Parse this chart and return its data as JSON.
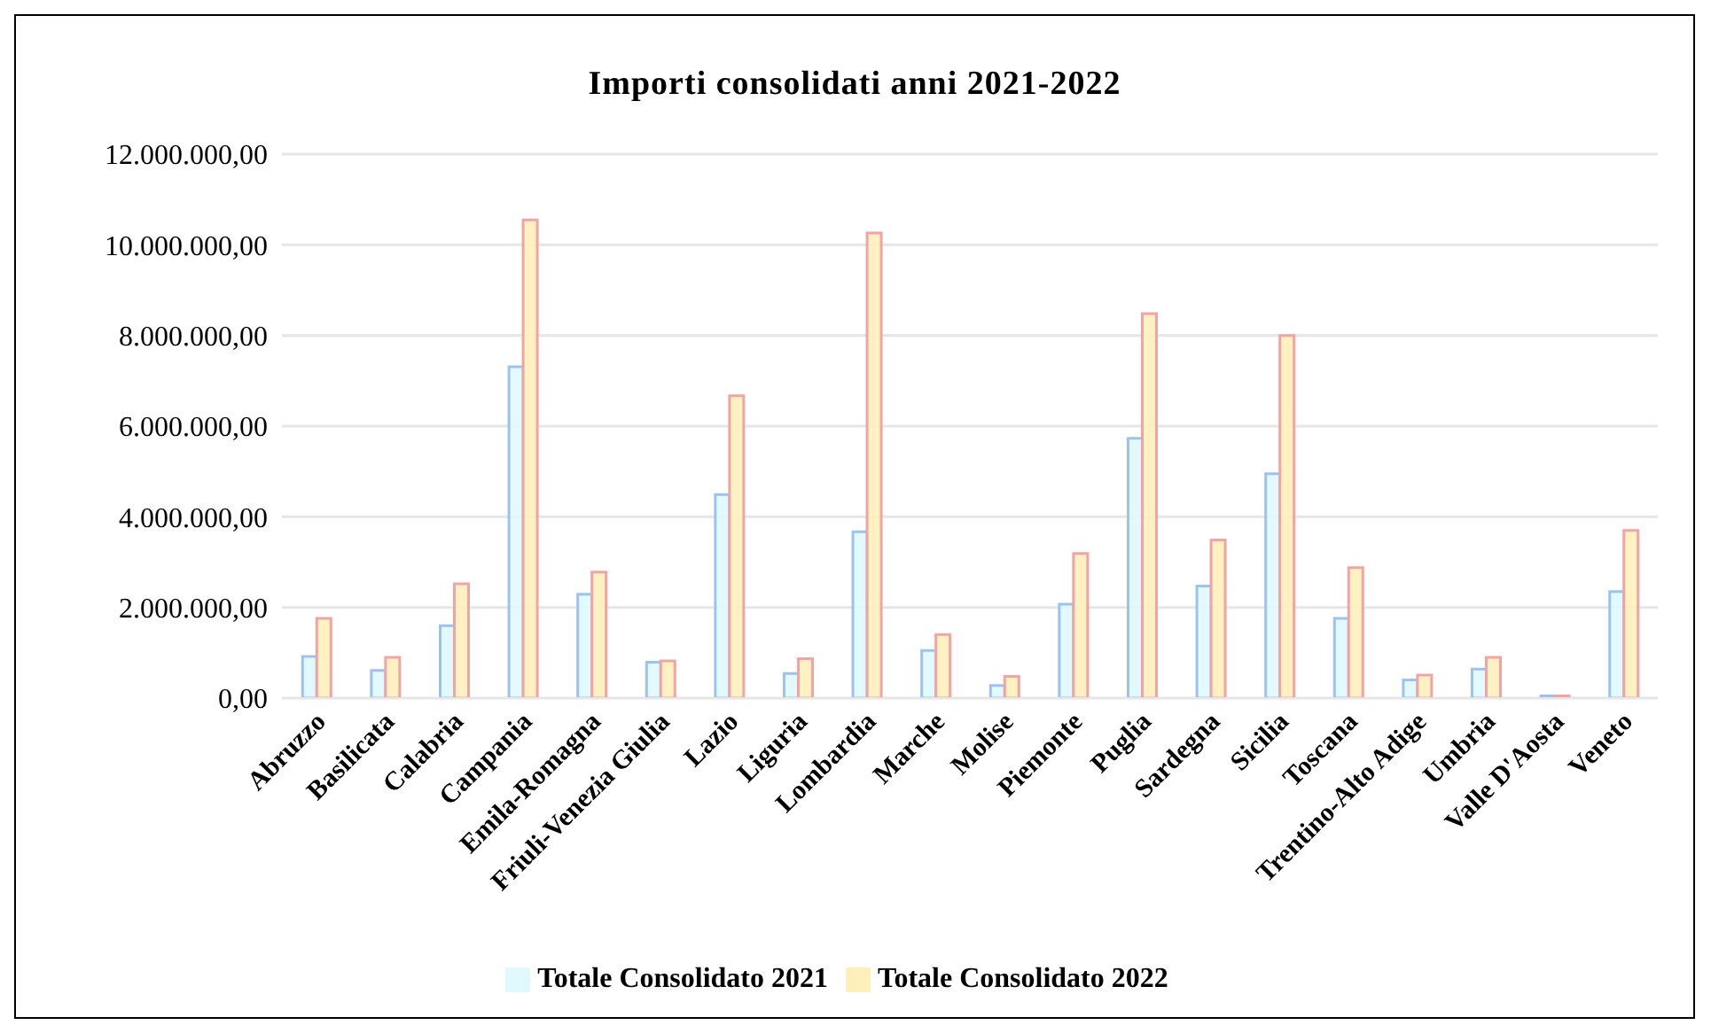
{
  "chart_data": {
    "type": "bar",
    "title": "Importi consolidati anni 2021-2022",
    "categories": [
      "Abruzzo",
      "Basilicata",
      "Calabria",
      "Campania",
      "Emila-Romagna",
      "Friuli-Venezia Giulia",
      "Lazio",
      "Liguria",
      "Lombardia",
      "Marche",
      "Molise",
      "Piemonte",
      "Puglia",
      "Sardegna",
      "Sicilia",
      "Toscana",
      "Trentino-Alto Adige",
      "Umbria",
      "Valle D'Aosta",
      "Veneto"
    ],
    "series": [
      {
        "name": "Totale Consolidato 2021",
        "color": "#dff9fd",
        "values": [
          920000,
          610000,
          1600000,
          7310000,
          2290000,
          790000,
          4490000,
          540000,
          3670000,
          1050000,
          280000,
          2070000,
          5730000,
          2470000,
          4950000,
          1760000,
          400000,
          640000,
          50000,
          2350000
        ]
      },
      {
        "name": "Totale Consolidato 2022",
        "color": "#fff0bb",
        "values": [
          1760000,
          900000,
          2520000,
          10550000,
          2780000,
          820000,
          6670000,
          870000,
          10260000,
          1400000,
          480000,
          3190000,
          8480000,
          3490000,
          8000000,
          2880000,
          510000,
          900000,
          50000,
          3700000
        ]
      }
    ],
    "ylim": [
      0,
      12000000
    ],
    "yticks": [
      {
        "value": 0,
        "label": "0,00"
      },
      {
        "value": 2000000,
        "label": "2.000.000,00"
      },
      {
        "value": 4000000,
        "label": "4.000.000,00"
      },
      {
        "value": 6000000,
        "label": "6.000.000,00"
      },
      {
        "value": 8000000,
        "label": "8.000.000,00"
      },
      {
        "value": 10000000,
        "label": "10.000.000,00"
      },
      {
        "value": 12000000,
        "label": "12.000.000,00"
      }
    ],
    "grid": "y",
    "legend": "bottom"
  }
}
